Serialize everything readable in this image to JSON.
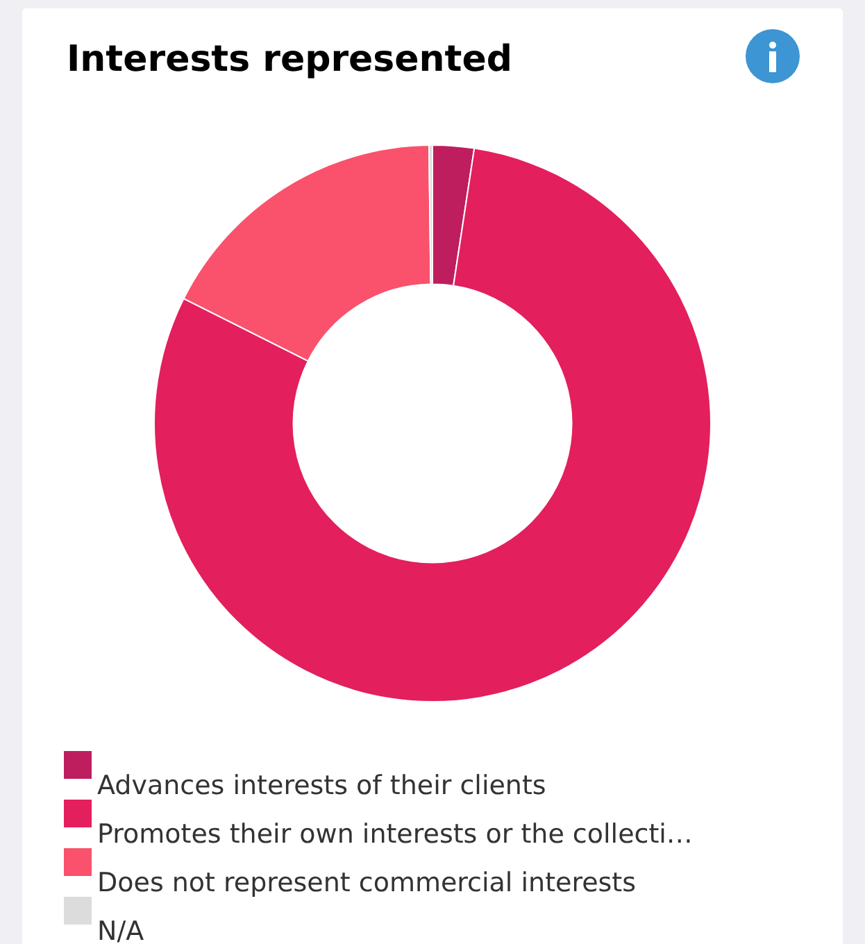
{
  "chart_data": {
    "type": "donut",
    "title": "Interests represented",
    "categories": [
      "Advances interests of their clients",
      "Promotes their own interests or the collecti…",
      "Does not represent commercial interests",
      "N/A"
    ],
    "values": [
      2.4,
      80.0,
      17.4,
      0.2
    ],
    "colors": [
      "#be1e5e",
      "#e31f5d",
      "#fa516c",
      "#dcdcdc"
    ],
    "legend": "bottom"
  }
}
